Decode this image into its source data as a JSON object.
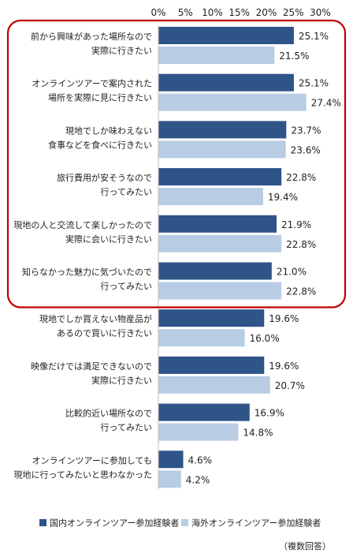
{
  "chart_data": {
    "type": "bar",
    "orientation": "horizontal",
    "xlim": [
      0,
      30
    ],
    "x_ticks": [
      "0%",
      "5%",
      "10%",
      "15%",
      "20%",
      "25%",
      "30%"
    ],
    "categories": [
      [
        "前から興味があった場所なので",
        "実際に行きたい"
      ],
      [
        "オンラインツアーで案内された",
        "場所を実際に見に行きたい"
      ],
      [
        "現地でしか味わえない",
        "食事などを食べに行きたい"
      ],
      [
        "旅行費用が安そうなので",
        "行ってみたい"
      ],
      [
        "現地の人と交流して楽しかったので",
        "実際に会いに行きたい"
      ],
      [
        "知らなかった魅力に気づいたので",
        "行ってみたい"
      ],
      [
        "現地でしか買えない物産品が",
        "あるので買いに行きたい"
      ],
      [
        "映像だけでは満足できないので",
        "実際に行きたい"
      ],
      [
        "比較的近い場所なので",
        "行ってみたい"
      ],
      [
        "オンラインツアーに参加しても",
        "現地に行ってみたいと思わなかった"
      ]
    ],
    "series": [
      {
        "name": "国内オンラインツアー参加経験者",
        "color": "#2e5488",
        "values": [
          25.1,
          25.1,
          23.7,
          22.8,
          21.9,
          21.0,
          19.6,
          19.6,
          16.9,
          4.6
        ],
        "labels": [
          "25.1%",
          "25.1%",
          "23.7%",
          "22.8%",
          "21.9%",
          "21.0%",
          "19.6%",
          "19.6%",
          "16.9%",
          "4.6%"
        ]
      },
      {
        "name": "海外オンラインツアー参加経験者",
        "color": "#b8cce4",
        "values": [
          21.5,
          27.4,
          23.6,
          19.4,
          22.8,
          22.8,
          16.0,
          20.7,
          14.8,
          4.2
        ],
        "labels": [
          "21.5%",
          "27.4%",
          "23.6%",
          "19.4%",
          "22.8%",
          "22.8%",
          "16.0%",
          "20.7%",
          "14.8%",
          "4.2%"
        ]
      }
    ],
    "highlight": {
      "from_category": 0,
      "to_category": 5,
      "color": "#c00000"
    },
    "legend_position": "bottom",
    "note": "（複数回答）"
  }
}
